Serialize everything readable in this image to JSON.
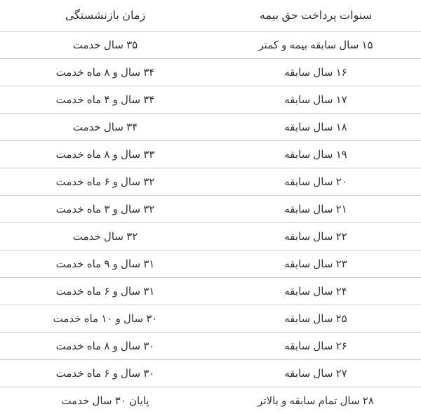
{
  "table": {
    "type": "table",
    "columns": [
      "سنوات پرداخت حق بیمه",
      "زمان بازنشستگی"
    ],
    "rows": [
      [
        "۱۵ سال سابقه بیمه و کمتر",
        "۳۵ سال خدمت"
      ],
      [
        "۱۶ سال سابقه",
        "۳۴ سال و ۸ ماه خدمت"
      ],
      [
        "۱۷ سال سابقه",
        "۳۴ سال و ۴ ماه خدمت"
      ],
      [
        "۱۸ سال سابقه",
        "۳۴ سال خدمت"
      ],
      [
        "۱۹ سال سابقه",
        "۳۳ سال و ۸ ماه خدمت"
      ],
      [
        "۲۰ سال سابقه",
        "۳۲ سال و ۶ ماه خدمت"
      ],
      [
        "۲۱ سال سابقه",
        "۳۲ سال و ۳ ماه خدمت"
      ],
      [
        "۲۲ سال سابقه",
        "۳۲ سال خدمت"
      ],
      [
        "۲۳ سال سابقه",
        "۳۱ سال و ۹ ماه خدمت"
      ],
      [
        "۲۴ سال سابقه",
        "۳۱ سال و ۶ ماه خدمت"
      ],
      [
        "۲۵ سال سابقه",
        "۳۰ سال و ۱۰ ماه خدمت"
      ],
      [
        "۲۶ سال سابقه",
        "۳۰ سال و ۸ ماه خدمت"
      ],
      [
        "۲۷ سال سابقه",
        "۳۰ سال و ۶ ماه خدمت"
      ],
      [
        "۲۸ سال تمام سابقه و بالاتر",
        "پایان ۳۰ سال خدمت"
      ]
    ],
    "border_color": "#cccccc",
    "text_color": "#333333",
    "background_color": "#ffffff",
    "header_fontsize": 16,
    "cell_fontsize": 15
  }
}
